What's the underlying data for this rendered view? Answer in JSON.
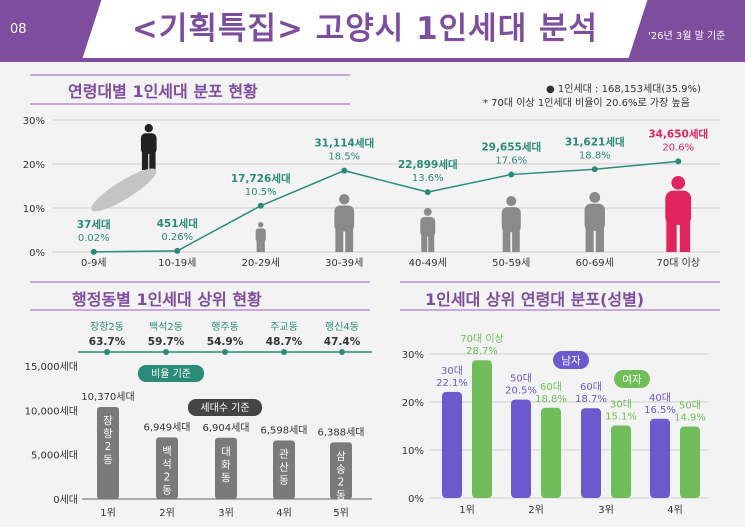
{
  "header": {
    "page_no": "08",
    "title": "<기획특집> 고양시 1인세대 분석",
    "base_date": "'26년 3월 말 기준"
  },
  "age_section": {
    "title": "연령대별 1인세대 분포 현황",
    "legend": "●  1인세대 : 168,153세대(35.9%)",
    "note": "* 70대 이상 1인세대 비율이 20.6%로 가장 높음"
  },
  "dong_section": {
    "title": "행정동별 1인세대 상위 현황",
    "ratio_label": "비율 기준",
    "count_label": "세대수 기준"
  },
  "gender_section": {
    "title": "1인세대 상위 연령대 분포(성별)",
    "male_label": "남자",
    "female_label": "여자"
  },
  "colors": {
    "purple": "#7d4e9e",
    "teal": "#2a8c78",
    "male": "#6a5acd",
    "female": "#6fbe5a",
    "gray_bar": "#7a7a7a",
    "red_highlight": "#e0245e"
  },
  "chart_data": [
    {
      "type": "line",
      "categories": [
        "0-9세",
        "10-19세",
        "20-29세",
        "30-39세",
        "40-49세",
        "50-59세",
        "60-69세",
        "70대 이상"
      ],
      "series": [
        {
          "values": [
            0.02,
            0.26,
            10.5,
            18.5,
            13.6,
            17.6,
            18.8,
            20.6
          ],
          "value_labels": [
            "0.02%",
            "0.26%",
            "10.5%",
            "18.5%",
            "13.6%",
            "17.6%",
            "18.8%",
            "20.6%"
          ],
          "count_labels": [
            "37세대",
            "451세대",
            "17,726세대",
            "31,114세대",
            "22,899세대",
            "29,655세대",
            "31,621세대",
            "34,650세대"
          ]
        }
      ],
      "y_ticks": [
        "0%",
        "10%",
        "20%",
        "30%"
      ],
      "ylim": [
        0,
        30
      ],
      "grid": true
    },
    {
      "type": "line",
      "categories": [
        "장항2동",
        "백석2동",
        "행주동",
        "주교동",
        "행신4동"
      ],
      "values": [
        63.7,
        59.7,
        54.9,
        48.7,
        47.4
      ],
      "value_labels": [
        "63.7%",
        "59.7%",
        "54.9%",
        "48.7%",
        "47.4%"
      ]
    },
    {
      "type": "bar",
      "categories": [
        "1위",
        "2위",
        "3위",
        "4위",
        "5위"
      ],
      "values": [
        10370,
        6949,
        6904,
        6598,
        6388
      ],
      "value_labels": [
        "10,370세대",
        "6,949세대",
        "6,904세대",
        "6,598세대",
        "6,388세대"
      ],
      "bar_labels": [
        "장항2동",
        "백석2동",
        "대화동",
        "관산동",
        "삼송2동"
      ],
      "y_ticks": [
        "0세대",
        "5,000세대",
        "10,000세대",
        "15,000세대"
      ],
      "ylim": [
        0,
        15000
      ]
    },
    {
      "type": "bar",
      "categories": [
        "1위",
        "2위",
        "3위",
        "4위"
      ],
      "series": [
        {
          "name": "남자",
          "values": [
            22.1,
            20.5,
            18.7,
            16.5
          ],
          "age_labels": [
            "30대",
            "50대",
            "60대",
            "40대"
          ],
          "value_labels": [
            "22.1%",
            "20.5%",
            "18.7%",
            "16.5%"
          ]
        },
        {
          "name": "여자",
          "values": [
            28.7,
            18.8,
            15.1,
            14.9
          ],
          "age_labels": [
            "70대 이상",
            "60대",
            "30대",
            "50대"
          ],
          "value_labels": [
            "28.7%",
            "18.8%",
            "15.1%",
            "14.9%"
          ]
        }
      ],
      "y_ticks": [
        "0%",
        "10%",
        "20%",
        "30%"
      ],
      "ylim": [
        0,
        30
      ],
      "grid": true
    }
  ]
}
